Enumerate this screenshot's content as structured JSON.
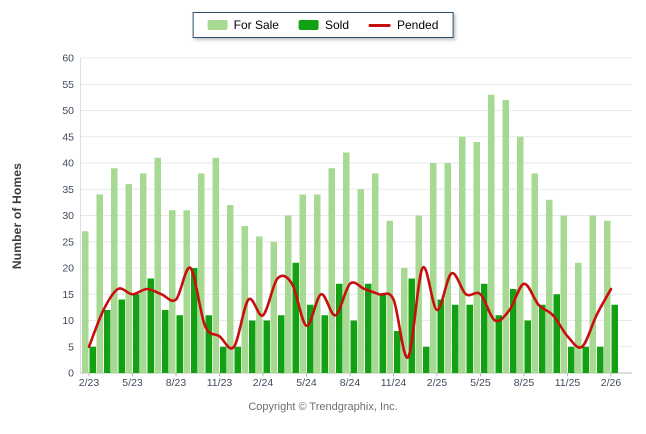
{
  "legend": {
    "items": [
      {
        "label": "For Sale",
        "color": "#a7d992",
        "type": "swatch"
      },
      {
        "label": "Sold",
        "color": "#13a013",
        "type": "swatch"
      },
      {
        "label": "Pended",
        "color": "#c80f0f",
        "type": "line"
      }
    ]
  },
  "y_axis": {
    "title": "Number of Homes",
    "min": 0,
    "max": 60,
    "step": 5
  },
  "footer": {
    "copyright": "Copyright © Trendgraphix, Inc."
  },
  "chart_data": {
    "type": "bar",
    "subtype": "grouped-bars-with-line-overlay",
    "title": "",
    "xlabel": "",
    "ylabel": "Number of Homes",
    "ylim": [
      0,
      60
    ],
    "ytick_step": 5,
    "grid": true,
    "legend_position": "top-center",
    "categories": [
      "2/23",
      "3/23",
      "4/23",
      "5/23",
      "6/23",
      "7/23",
      "8/23",
      "9/23",
      "10/23",
      "11/23",
      "12/23",
      "1/24",
      "2/24",
      "3/24",
      "4/24",
      "5/24",
      "6/24",
      "7/24",
      "8/24",
      "9/24",
      "10/24",
      "11/24",
      "12/24",
      "1/25",
      "2/25",
      "3/25",
      "4/25",
      "5/25",
      "6/25",
      "7/25",
      "8/25",
      "9/25",
      "10/25",
      "11/25",
      "12/25",
      "1/26",
      "2/26"
    ],
    "x_tick_labels": [
      "2/23",
      "5/23",
      "8/23",
      "11/23",
      "2/24",
      "5/24",
      "8/24",
      "11/24",
      "2/25",
      "5/25",
      "8/25",
      "11/25",
      "2/26"
    ],
    "x_tick_every": 3,
    "series": [
      {
        "name": "For Sale",
        "type": "bar",
        "color": "#a7d992",
        "values": [
          27,
          34,
          39,
          36,
          38,
          41,
          31,
          31,
          38,
          41,
          32,
          28,
          26,
          25,
          30,
          34,
          34,
          39,
          42,
          35,
          38,
          29,
          20,
          30,
          40,
          40,
          45,
          44,
          53,
          52,
          45,
          38,
          33,
          30,
          21,
          30,
          29
        ]
      },
      {
        "name": "Sold",
        "type": "bar",
        "color": "#13a013",
        "values": [
          5,
          12,
          14,
          15,
          18,
          12,
          11,
          20,
          11,
          5,
          5,
          10,
          10,
          11,
          21,
          13,
          11,
          17,
          10,
          17,
          15,
          8,
          18,
          5,
          14,
          13,
          13,
          17,
          11,
          16,
          10,
          13,
          15,
          5,
          5,
          5,
          13
        ]
      },
      {
        "name": "Pended",
        "type": "line",
        "color": "#c80f0f",
        "values": [
          5,
          12,
          16,
          15,
          16,
          15,
          14,
          20,
          9,
          7,
          5,
          14,
          11,
          18,
          17,
          9,
          15,
          11,
          17,
          16,
          15,
          14,
          3,
          20,
          12,
          19,
          15,
          15,
          10,
          12,
          17,
          13,
          11,
          7,
          5,
          11,
          16
        ]
      }
    ]
  }
}
